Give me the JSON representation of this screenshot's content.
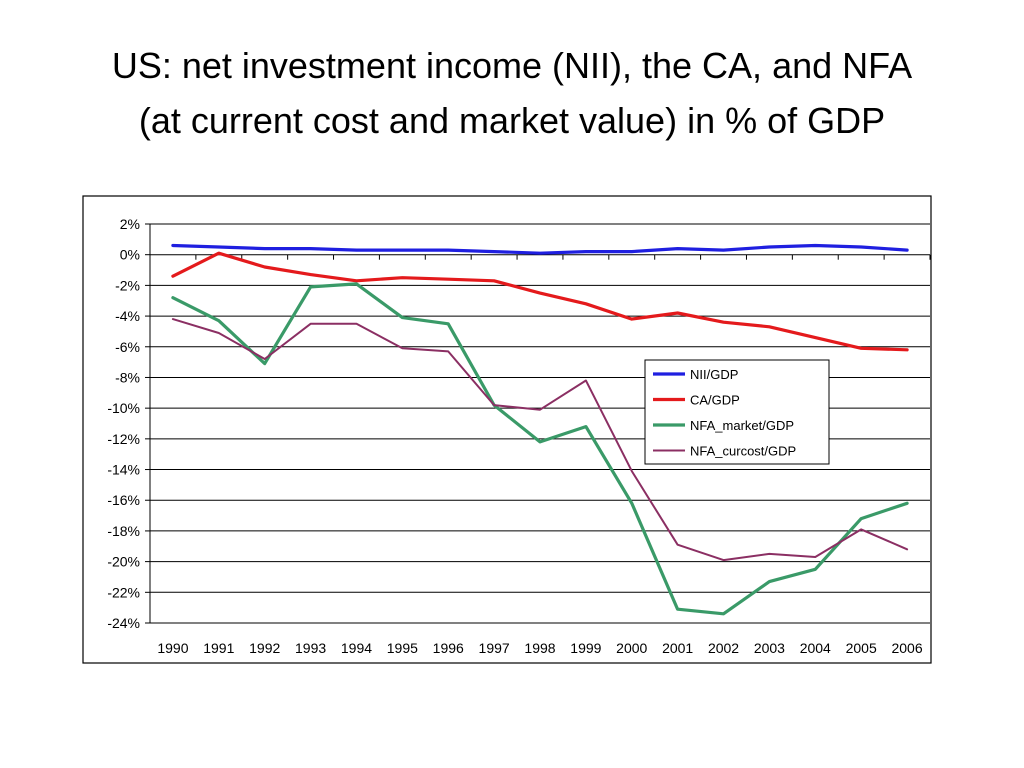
{
  "title": {
    "line1": "US: net investment income (NII), the CA, and NFA",
    "line2": "(at current cost and market value) in % of GDP"
  },
  "colors": {
    "NII/GDP": "#1f1fe0",
    "CA/GDP": "#e41a1c",
    "NFA_market/GDP": "#3a9a68",
    "NFA_curcost/GDP": "#8b2f63"
  },
  "chart_data": {
    "type": "line",
    "x": [
      "1990",
      "1991",
      "1992",
      "1993",
      "1994",
      "1995",
      "1996",
      "1997",
      "1998",
      "1999",
      "2000",
      "2001",
      "2002",
      "2003",
      "2004",
      "2005",
      "2006"
    ],
    "y_ticks": [
      "2%",
      "0%",
      "-2%",
      "-4%",
      "-6%",
      "-8%",
      "-10%",
      "-12%",
      "-14%",
      "-16%",
      "-18%",
      "-20%",
      "-22%",
      "-24%"
    ],
    "ylim": [
      -24,
      2
    ],
    "y_unit": "%",
    "grid": "horizontal",
    "legend_position": "right-middle",
    "series": [
      {
        "name": "NII/GDP",
        "values": [
          0.6,
          0.5,
          0.4,
          0.4,
          0.3,
          0.3,
          0.3,
          0.2,
          0.1,
          0.2,
          0.2,
          0.4,
          0.3,
          0.5,
          0.6,
          0.5,
          0.3
        ]
      },
      {
        "name": "CA/GDP",
        "values": [
          -1.4,
          0.1,
          -0.8,
          -1.3,
          -1.7,
          -1.5,
          -1.6,
          -1.7,
          -2.5,
          -3.2,
          -4.2,
          -3.8,
          -4.4,
          -4.7,
          -5.4,
          -6.1,
          -6.2
        ]
      },
      {
        "name": "NFA_market/GDP",
        "values": [
          -2.8,
          -4.3,
          -7.1,
          -2.1,
          -1.9,
          -4.1,
          -4.5,
          -9.8,
          -12.2,
          -11.2,
          -16.2,
          -23.1,
          -23.4,
          -21.3,
          -20.5,
          -17.2,
          -16.2
        ]
      },
      {
        "name": "NFA_curcost/GDP",
        "values": [
          -4.2,
          -5.1,
          -6.8,
          -4.5,
          -4.5,
          -6.1,
          -6.3,
          -9.8,
          -10.1,
          -8.2,
          -14.1,
          -18.9,
          -19.9,
          -19.5,
          -19.7,
          -17.9,
          -19.2
        ]
      }
    ]
  }
}
